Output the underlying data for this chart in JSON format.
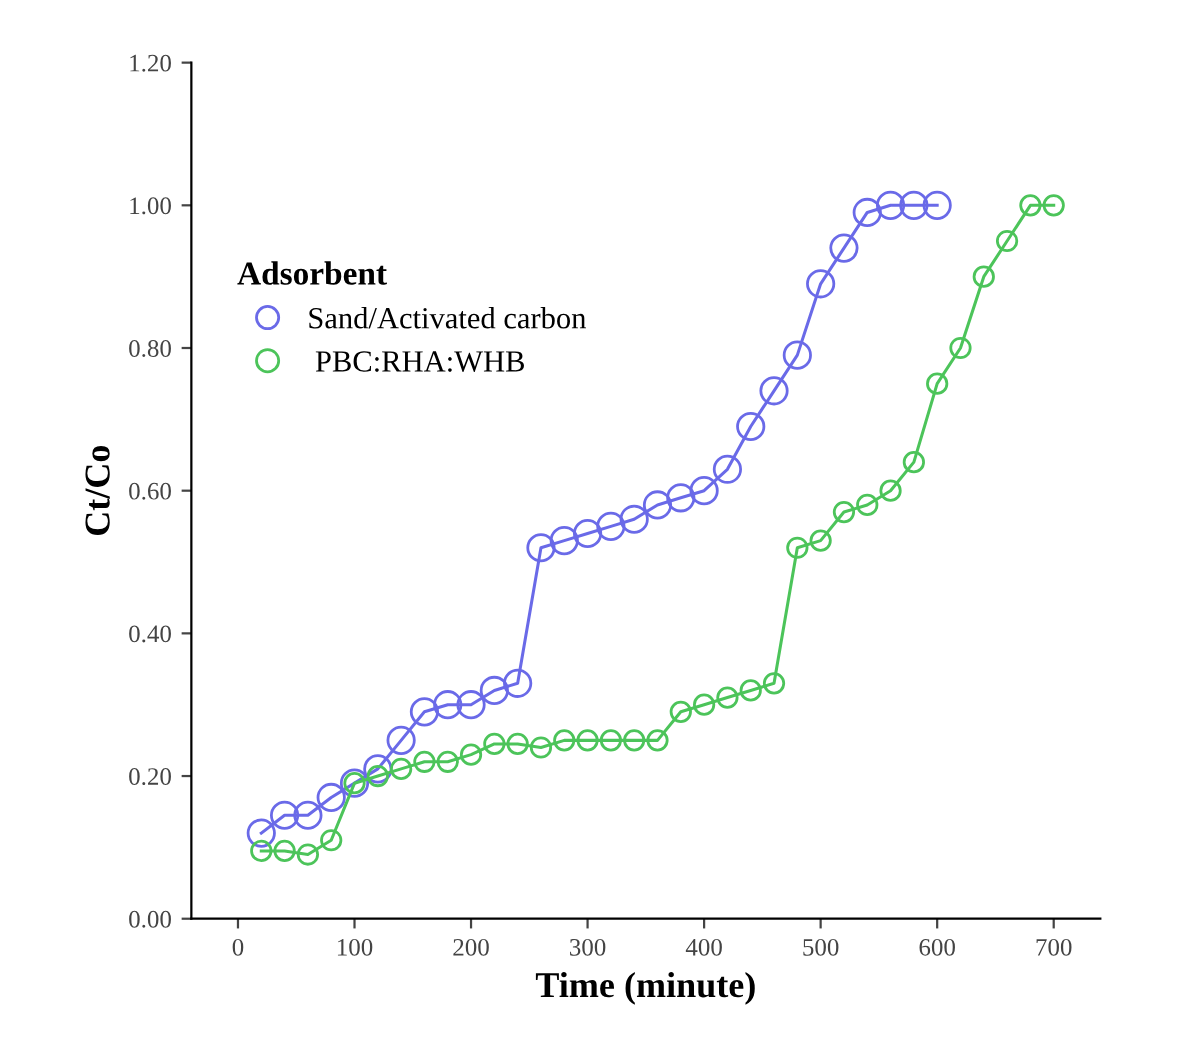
{
  "chart_data": {
    "type": "line",
    "xlabel": "Time (minute)",
    "ylabel": "Ct/Co",
    "legend_title": "Adsorbent",
    "legend": "top left",
    "marker": "circle",
    "line_style": "solid",
    "grid": false,
    "xlim": [
      -40,
      740
    ],
    "xticks": [
      0,
      100,
      200,
      300,
      400,
      500,
      600,
      700
    ],
    "ylim": [
      0,
      1.2
    ],
    "yticks": [
      {
        "value": 0,
        "label": "0.00"
      },
      {
        "value": 0.2,
        "label": "0.20"
      },
      {
        "value": 0.4,
        "label": "0.40"
      },
      {
        "value": 0.6,
        "label": "0.60"
      },
      {
        "value": 0.8,
        "label": "0.80"
      },
      {
        "value": 1.0,
        "label": "1.00"
      },
      {
        "value": 1.2,
        "label": "1.20"
      }
    ],
    "series": [
      {
        "name": "Sand/Activated carbon",
        "color": "#6a6ae8",
        "x": [
          20,
          40,
          60,
          80,
          100,
          120,
          140,
          160,
          180,
          200,
          220,
          240,
          260,
          280,
          300,
          320,
          340,
          360,
          380,
          400,
          420,
          440,
          460,
          480,
          500,
          520,
          540,
          560,
          580,
          600
        ],
        "values": [
          0.12,
          0.145,
          0.145,
          0.17,
          0.19,
          0.21,
          0.25,
          0.29,
          0.3,
          0.3,
          0.32,
          0.33,
          0.52,
          0.53,
          0.54,
          0.55,
          0.56,
          0.58,
          0.59,
          0.6,
          0.63,
          0.69,
          0.74,
          0.79,
          0.89,
          0.94,
          0.99,
          1.0,
          1.0,
          1.0
        ]
      },
      {
        "name": " PBC:RHA:WHB",
        "color": "#4cc45a",
        "x": [
          20,
          40,
          60,
          80,
          100,
          120,
          140,
          160,
          180,
          200,
          220,
          240,
          260,
          280,
          300,
          320,
          340,
          360,
          380,
          400,
          420,
          440,
          460,
          480,
          500,
          520,
          540,
          560,
          580,
          600,
          620,
          640,
          660,
          680,
          700
        ],
        "values": [
          0.095,
          0.095,
          0.09,
          0.11,
          0.19,
          0.2,
          0.21,
          0.22,
          0.22,
          0.23,
          0.245,
          0.245,
          0.24,
          0.25,
          0.25,
          0.25,
          0.25,
          0.25,
          0.29,
          0.3,
          0.31,
          0.32,
          0.33,
          0.52,
          0.53,
          0.57,
          0.58,
          0.6,
          0.64,
          0.75,
          0.8,
          0.9,
          0.95,
          1.0,
          1.0
        ]
      }
    ]
  }
}
